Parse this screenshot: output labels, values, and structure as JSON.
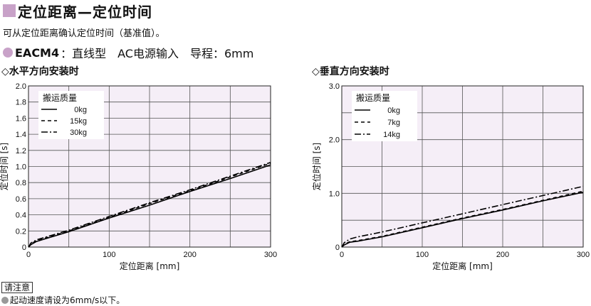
{
  "header": {
    "title": "定位距离—定位时间",
    "subtitle": "可从定位距离确认定位时间（基准值）。",
    "model": "EACM4",
    "model_spec": "：直线型　AC电源输入　导程：6mm"
  },
  "colors": {
    "accent": "#c8a2c8",
    "plot_bg": "#f5eef7",
    "grid": "#555555"
  },
  "charts": [
    {
      "heading": "◇水平方向安装时"
    },
    {
      "heading": "◇垂直方向安装时"
    }
  ],
  "chart_data": [
    {
      "type": "line",
      "xlabel": "定位距离 [mm]",
      "ylabel": "定位时间 [s]",
      "xlim": [
        0,
        300
      ],
      "ylim": [
        0,
        2.0
      ],
      "xticks": [
        0,
        100,
        200,
        300
      ],
      "xtick_labels": [
        "0",
        "100",
        "200",
        "300"
      ],
      "yticks": [
        0,
        0.2,
        0.4,
        0.6,
        0.8,
        1.0,
        1.2,
        1.4,
        1.6,
        1.8,
        2.0
      ],
      "ytick_labels": [
        "0",
        "0.2",
        "0.4",
        "0.6",
        "0.8",
        "1.0",
        "1.2",
        "1.4",
        "1.6",
        "1.8",
        "2.0"
      ],
      "grid": true,
      "legend_title": "搬运质量",
      "legend_position": "top-left",
      "series": [
        {
          "name": "0kg",
          "dash": "solid",
          "x": [
            0,
            3,
            10,
            20,
            50,
            100,
            150,
            200,
            250,
            300
          ],
          "y": [
            0,
            0.03,
            0.07,
            0.1,
            0.19,
            0.36,
            0.52,
            0.69,
            0.85,
            1.02
          ]
        },
        {
          "name": "15kg",
          "dash": "dashed",
          "x": [
            0,
            3,
            10,
            20,
            50,
            100,
            150,
            200,
            250,
            300
          ],
          "y": [
            0,
            0.04,
            0.08,
            0.11,
            0.2,
            0.37,
            0.54,
            0.7,
            0.87,
            1.04
          ]
        },
        {
          "name": "30kg",
          "dash": "dashdot",
          "x": [
            0,
            3,
            10,
            20,
            50,
            100,
            150,
            200,
            250,
            300
          ],
          "y": [
            0,
            0.05,
            0.09,
            0.12,
            0.21,
            0.38,
            0.55,
            0.71,
            0.88,
            1.05
          ]
        }
      ]
    },
    {
      "type": "line",
      "xlabel": "定位距离 [mm]",
      "ylabel": "定位时间 [s]",
      "xlim": [
        0,
        300
      ],
      "ylim": [
        0,
        3.0
      ],
      "xticks": [
        0,
        100,
        200,
        300
      ],
      "xtick_labels": [
        "0",
        "100",
        "200",
        "300"
      ],
      "yticks": [
        0,
        1.0,
        2.0,
        3.0
      ],
      "ytick_labels": [
        "0",
        "1.0",
        "2.0",
        "3.0"
      ],
      "grid": true,
      "legend_title": "搬运质量",
      "legend_position": "top-left",
      "series": [
        {
          "name": "0kg",
          "dash": "solid",
          "x": [
            0,
            3,
            10,
            20,
            50,
            100,
            150,
            200,
            250,
            300
          ],
          "y": [
            0,
            0.04,
            0.09,
            0.11,
            0.19,
            0.36,
            0.53,
            0.69,
            0.86,
            1.02
          ]
        },
        {
          "name": "7kg",
          "dash": "dashed",
          "x": [
            0,
            3,
            10,
            20,
            50,
            100,
            150,
            200,
            250,
            300
          ],
          "y": [
            0,
            0.05,
            0.1,
            0.12,
            0.2,
            0.37,
            0.54,
            0.7,
            0.87,
            1.04
          ]
        },
        {
          "name": "14kg",
          "dash": "dashdot",
          "x": [
            0,
            3,
            10,
            20,
            50,
            100,
            150,
            200,
            250,
            300
          ],
          "y": [
            0,
            0.08,
            0.15,
            0.19,
            0.28,
            0.45,
            0.62,
            0.79,
            0.96,
            1.13
          ]
        }
      ]
    }
  ],
  "notes": {
    "heading": "请注意",
    "text": "起动速度请设为6mm/s以下。"
  }
}
